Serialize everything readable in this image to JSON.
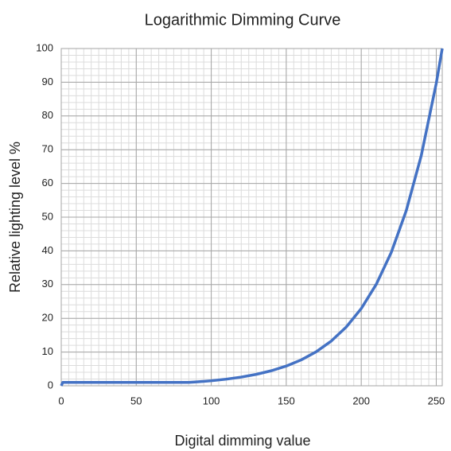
{
  "chart_data": {
    "type": "line",
    "title": "Logarithmic Dimming Curve",
    "x_label": "Digital dimming value",
    "y_label": "Relative lighting level %",
    "x": [
      0,
      1,
      85,
      90,
      100,
      110,
      120,
      130,
      140,
      150,
      160,
      170,
      180,
      190,
      200,
      210,
      220,
      230,
      240,
      250,
      254
    ],
    "series": [
      {
        "name": "Relative lighting level",
        "color": "#4472c4",
        "values": [
          0,
          1,
          1,
          1.14,
          1.49,
          1.96,
          2.58,
          3.39,
          4.45,
          5.85,
          7.68,
          10.09,
          13.26,
          17.42,
          22.89,
          30.08,
          39.53,
          51.94,
          68.24,
          89.67,
          100
        ]
      }
    ],
    "xlim": [
      0,
      254
    ],
    "ylim": [
      0,
      100
    ],
    "xticks": [
      0,
      50,
      100,
      150,
      200,
      250
    ],
    "yticks": [
      0,
      10,
      20,
      30,
      40,
      50,
      60,
      70,
      80,
      90,
      100
    ],
    "grid": true,
    "minor_grid": {
      "x": 5,
      "y": 2
    }
  }
}
